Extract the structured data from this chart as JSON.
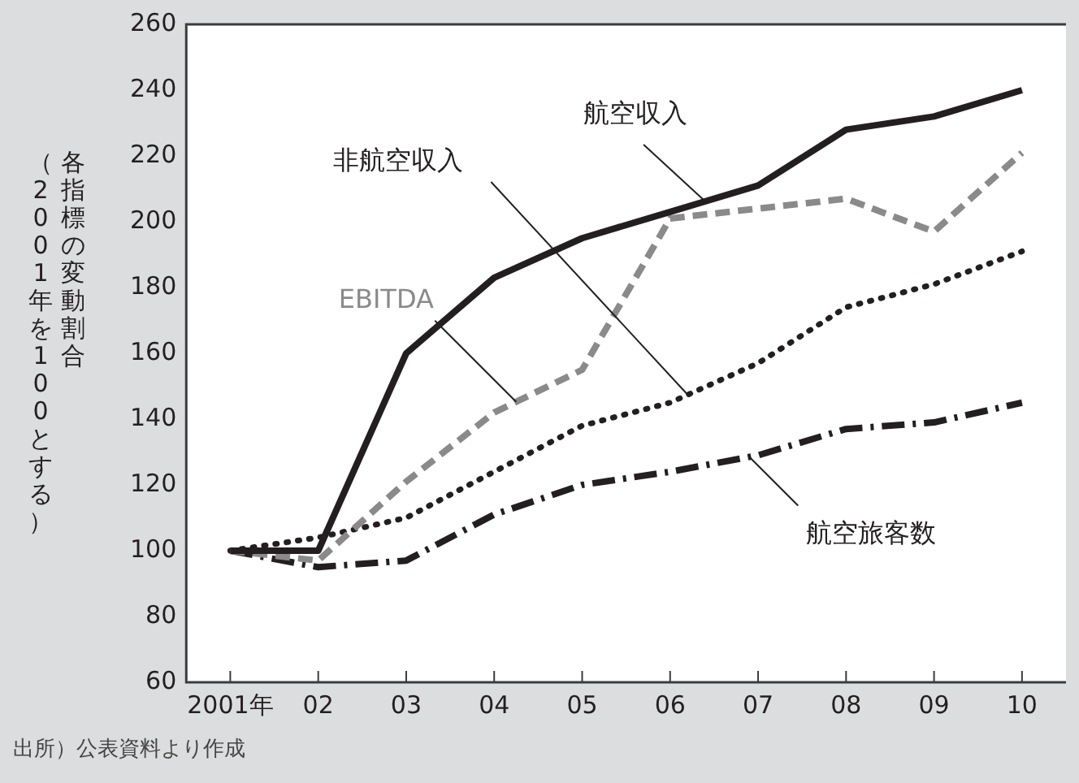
{
  "chart_data": {
    "type": "line",
    "ylabel": "各指標の変動割合（2001年を100とする）",
    "categories": [
      "2001年",
      "02",
      "03",
      "04",
      "05",
      "06",
      "07",
      "08",
      "09",
      "10"
    ],
    "series": [
      {
        "name": "航空収入",
        "color": "#231f20",
        "line_style": "solid",
        "values": [
          100,
          100,
          160,
          183,
          195,
          203,
          211,
          228,
          232,
          240
        ]
      },
      {
        "name": "EBITDA",
        "color": "#8a8a8a",
        "line_style": "dashed",
        "values": [
          100,
          97,
          121,
          142,
          155,
          201,
          204,
          207,
          197,
          221
        ]
      },
      {
        "name": "非航空収入",
        "color": "#231f20",
        "line_style": "dotted",
        "values": [
          100,
          104,
          110,
          124,
          138,
          145,
          157,
          174,
          181,
          191
        ]
      },
      {
        "name": "航空旅客数",
        "color": "#231f20",
        "line_style": "dashdot",
        "values": [
          100,
          95,
          97,
          111,
          120,
          124,
          129,
          137,
          139,
          145
        ]
      }
    ],
    "ylim": [
      60,
      260
    ],
    "yticks": [
      60,
      80,
      100,
      120,
      140,
      160,
      180,
      200,
      220,
      240,
      260
    ],
    "legend": false,
    "marker": "none",
    "annotations": [
      "出所）公表資料より作成"
    ]
  }
}
